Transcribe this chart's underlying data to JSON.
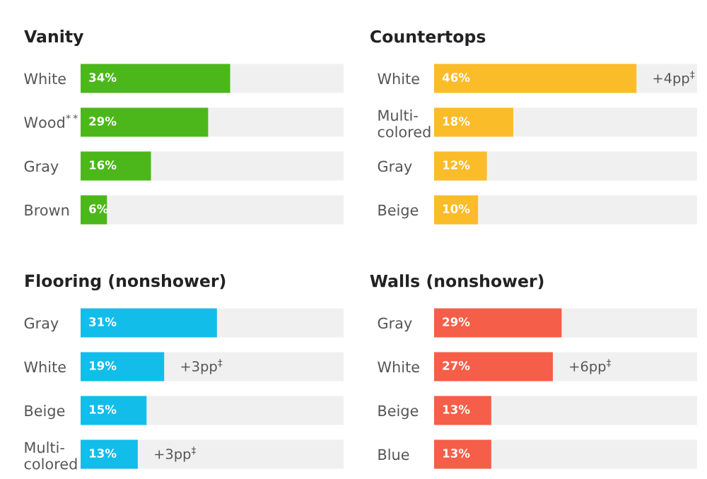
{
  "chart_data": [
    {
      "type": "bar",
      "orientation": "horizontal",
      "title": "Vanity",
      "categories": [
        "White",
        "Wood$^{**}$",
        "Gray",
        "Brown"
      ],
      "values": [
        34,
        29,
        16,
        6
      ],
      "value_labels": [
        "34%",
        "29%",
        "16%",
        "6%"
      ],
      "color": "#4cb71a",
      "tick_labels": "y",
      "grid": false,
      "legend": false
    },
    {
      "type": "bar",
      "orientation": "horizontal",
      "title": "Countertops",
      "categories": [
        "White",
        "Multi-\ncolored",
        "Gray",
        "Beige"
      ],
      "values": [
        46,
        18,
        12,
        10
      ],
      "value_labels": [
        "46%",
        "18%",
        "12%",
        "10%"
      ],
      "color": "#fbbc2a",
      "tick_labels": "y",
      "grid": false,
      "legend": false,
      "annotations": [
        {
          "text": "+4pp$^{‡}$",
          "x": 46,
          "y": "White"
        }
      ]
    },
    {
      "type": "bar",
      "orientation": "horizontal",
      "title": "Flooring (nonshower)",
      "categories": [
        "Gray",
        "White",
        "Beige",
        "Multi-\ncolored"
      ],
      "values": [
        31,
        19,
        15,
        13
      ],
      "value_labels": [
        "31%",
        "19%",
        "15%",
        "13%"
      ],
      "color": "#13bdea",
      "tick_labels": "y",
      "grid": false,
      "legend": false,
      "annotations": [
        {
          "text": "+3pp$^{‡}$",
          "x": 19,
          "y": "White"
        },
        {
          "text": "+3pp$^{‡}$",
          "x": 13,
          "y": "Multi-\ncolored"
        }
      ]
    },
    {
      "type": "bar",
      "orientation": "horizontal",
      "title": "Walls (nonshower)",
      "categories": [
        "Gray",
        "White",
        "Beige",
        "Blue"
      ],
      "values": [
        29,
        27,
        13,
        13
      ],
      "value_labels": [
        "29%",
        "27%",
        "13%",
        "13%"
      ],
      "color": "#f55e48",
      "tick_labels": "y",
      "grid": false,
      "legend": false,
      "annotations": [
        {
          "text": "+6pp$^{‡}$",
          "x": 27,
          "y": "White"
        }
      ]
    }
  ]
}
